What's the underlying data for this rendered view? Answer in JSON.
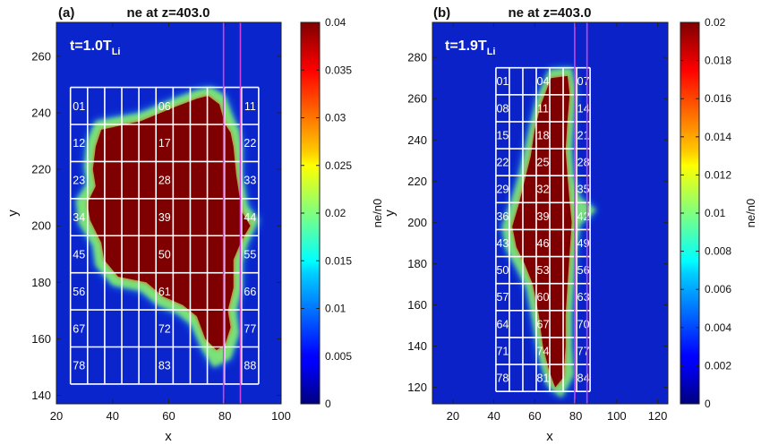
{
  "chart_data": [
    {
      "type": "heatmap",
      "panel_label": "(a)",
      "title": "ne at z=403.0",
      "time_label_main": "t=1.0T",
      "time_label_sub": "Li",
      "xlabel": "x",
      "ylabel": "y",
      "xlim": [
        20,
        100
      ],
      "ylim": [
        137,
        272
      ],
      "xticks": [
        "20",
        "40",
        "60",
        "80",
        "100"
      ],
      "yticks": [
        "140",
        "160",
        "180",
        "200",
        "220",
        "240",
        "260"
      ],
      "xtick_values": [
        20,
        40,
        60,
        80,
        100
      ],
      "ytick_values": [
        140,
        160,
        180,
        200,
        220,
        240,
        260
      ],
      "colorbar_label": "ne/n0",
      "clim": [
        0,
        0.04
      ],
      "colorbar_ticks": [
        "0",
        "0.005",
        "0.01",
        "0.015",
        "0.02",
        "0.025",
        "0.03",
        "0.035",
        "0.04"
      ],
      "colorbar_tick_values": [
        0,
        0.005,
        0.01,
        0.015,
        0.02,
        0.025,
        0.03,
        0.035,
        0.04
      ],
      "background_value": 0.001,
      "grid_box": {
        "x0": 25,
        "x1": 92,
        "y0": 144,
        "y1": 249,
        "cols": 11,
        "rows": 8
      },
      "vertical_lines_x": [
        79.5,
        85.5
      ],
      "vertical_line_color": "#cc44dd",
      "cell_labels": [
        {
          "text": "01",
          "col": 0,
          "row": 0
        },
        {
          "text": "06",
          "col": 5,
          "row": 0
        },
        {
          "text": "11",
          "col": 10,
          "row": 0
        },
        {
          "text": "12",
          "col": 0,
          "row": 1
        },
        {
          "text": "17",
          "col": 5,
          "row": 1
        },
        {
          "text": "22",
          "col": 10,
          "row": 1
        },
        {
          "text": "23",
          "col": 0,
          "row": 2
        },
        {
          "text": "28",
          "col": 5,
          "row": 2
        },
        {
          "text": "33",
          "col": 10,
          "row": 2
        },
        {
          "text": "34",
          "col": 0,
          "row": 3
        },
        {
          "text": "39",
          "col": 5,
          "row": 3
        },
        {
          "text": "44",
          "col": 10,
          "row": 3
        },
        {
          "text": "45",
          "col": 0,
          "row": 4
        },
        {
          "text": "50",
          "col": 5,
          "row": 4
        },
        {
          "text": "55",
          "col": 10,
          "row": 4
        },
        {
          "text": "56",
          "col": 0,
          "row": 5
        },
        {
          "text": "61",
          "col": 5,
          "row": 5
        },
        {
          "text": "66",
          "col": 10,
          "row": 5
        },
        {
          "text": "67",
          "col": 0,
          "row": 6
        },
        {
          "text": "72",
          "col": 5,
          "row": 6
        },
        {
          "text": "77",
          "col": 10,
          "row": 6
        },
        {
          "text": "78",
          "col": 0,
          "row": 7
        },
        {
          "text": "83",
          "col": 5,
          "row": 7
        },
        {
          "text": "88",
          "col": 10,
          "row": 7
        }
      ],
      "blob_outline": [
        [
          36,
          234
        ],
        [
          50,
          237
        ],
        [
          62,
          242
        ],
        [
          70,
          245
        ],
        [
          74,
          246
        ],
        [
          78,
          243
        ],
        [
          80,
          236
        ],
        [
          82,
          233
        ],
        [
          83,
          228
        ],
        [
          84,
          218
        ],
        [
          86,
          205
        ],
        [
          89,
          200
        ],
        [
          86,
          195
        ],
        [
          83,
          188
        ],
        [
          83,
          178
        ],
        [
          81,
          170
        ],
        [
          82,
          164
        ],
        [
          80,
          158
        ],
        [
          77,
          156
        ],
        [
          73,
          160
        ],
        [
          70,
          168
        ],
        [
          65,
          172
        ],
        [
          58,
          175
        ],
        [
          52,
          180
        ],
        [
          42,
          182
        ],
        [
          37,
          188
        ],
        [
          36,
          194
        ],
        [
          32,
          202
        ],
        [
          31,
          208
        ],
        [
          34,
          214
        ],
        [
          33,
          220
        ],
        [
          34,
          228
        ]
      ],
      "blob_halo": [
        [
          34,
          237
        ],
        [
          50,
          240
        ],
        [
          62,
          245
        ],
        [
          70,
          248
        ],
        [
          75,
          249
        ],
        [
          80,
          246
        ],
        [
          83,
          238
        ],
        [
          85,
          234
        ],
        [
          86,
          228
        ],
        [
          86,
          218
        ],
        [
          88,
          207
        ],
        [
          92,
          202
        ],
        [
          88,
          194
        ],
        [
          86,
          187
        ],
        [
          86,
          178
        ],
        [
          84,
          170
        ],
        [
          85,
          162
        ],
        [
          82,
          153
        ],
        [
          76,
          150
        ],
        [
          72,
          156
        ],
        [
          68,
          165
        ],
        [
          63,
          169
        ],
        [
          56,
          172
        ],
        [
          50,
          177
        ],
        [
          40,
          179
        ],
        [
          34,
          186
        ],
        [
          33,
          193
        ],
        [
          28,
          201
        ],
        [
          27,
          209
        ],
        [
          31,
          215
        ],
        [
          30,
          221
        ],
        [
          31,
          230
        ]
      ]
    },
    {
      "type": "heatmap",
      "panel_label": "(b)",
      "title": "ne at z=403.0",
      "time_label_main": "t=1.9T",
      "time_label_sub": "Li",
      "xlabel": "x",
      "ylabel": "y",
      "xlim": [
        10,
        125
      ],
      "ylim": [
        112,
        297
      ],
      "xticks": [
        "20",
        "40",
        "60",
        "80",
        "100",
        "120"
      ],
      "yticks": [
        "120",
        "140",
        "160",
        "180",
        "200",
        "220",
        "240",
        "260",
        "280"
      ],
      "xtick_values": [
        20,
        40,
        60,
        80,
        100,
        120
      ],
      "ytick_values": [
        120,
        140,
        160,
        180,
        200,
        220,
        240,
        260,
        280
      ],
      "colorbar_label": "ne/n0",
      "clim": [
        0,
        0.02
      ],
      "colorbar_ticks": [
        "0",
        "0.002",
        "0.004",
        "0.006",
        "0.008",
        "0.01",
        "0.012",
        "0.014",
        "0.016",
        "0.018",
        "0.02"
      ],
      "colorbar_tick_values": [
        0,
        0.002,
        0.004,
        0.006,
        0.008,
        0.01,
        0.012,
        0.014,
        0.016,
        0.018,
        0.02
      ],
      "background_value": 0.0005,
      "grid_box": {
        "x0": 41,
        "x1": 87,
        "y0": 118,
        "y1": 275,
        "cols": 7,
        "rows": 12
      },
      "vertical_lines_x": [
        79.5,
        85.5
      ],
      "vertical_line_color": "#cc44dd",
      "cell_labels": [
        {
          "text": "01",
          "col": 0,
          "row": 0
        },
        {
          "text": "04",
          "col": 3,
          "row": 0
        },
        {
          "text": "07",
          "col": 6,
          "row": 0
        },
        {
          "text": "08",
          "col": 0,
          "row": 1
        },
        {
          "text": "11",
          "col": 3,
          "row": 1
        },
        {
          "text": "14",
          "col": 6,
          "row": 1
        },
        {
          "text": "15",
          "col": 0,
          "row": 2
        },
        {
          "text": "18",
          "col": 3,
          "row": 2
        },
        {
          "text": "21",
          "col": 6,
          "row": 2
        },
        {
          "text": "22",
          "col": 0,
          "row": 3
        },
        {
          "text": "25",
          "col": 3,
          "row": 3
        },
        {
          "text": "28",
          "col": 6,
          "row": 3
        },
        {
          "text": "29",
          "col": 0,
          "row": 4
        },
        {
          "text": "32",
          "col": 3,
          "row": 4
        },
        {
          "text": "35",
          "col": 6,
          "row": 4
        },
        {
          "text": "36",
          "col": 0,
          "row": 5
        },
        {
          "text": "39",
          "col": 3,
          "row": 5
        },
        {
          "text": "42",
          "col": 6,
          "row": 5
        },
        {
          "text": "43",
          "col": 0,
          "row": 6
        },
        {
          "text": "46",
          "col": 3,
          "row": 6
        },
        {
          "text": "49",
          "col": 6,
          "row": 6
        },
        {
          "text": "50",
          "col": 0,
          "row": 7
        },
        {
          "text": "53",
          "col": 3,
          "row": 7
        },
        {
          "text": "56",
          "col": 6,
          "row": 7
        },
        {
          "text": "57",
          "col": 0,
          "row": 8
        },
        {
          "text": "60",
          "col": 3,
          "row": 8
        },
        {
          "text": "63",
          "col": 6,
          "row": 8
        },
        {
          "text": "64",
          "col": 0,
          "row": 9
        },
        {
          "text": "67",
          "col": 3,
          "row": 9
        },
        {
          "text": "70",
          "col": 6,
          "row": 9
        },
        {
          "text": "71",
          "col": 0,
          "row": 10
        },
        {
          "text": "74",
          "col": 3,
          "row": 10
        },
        {
          "text": "77",
          "col": 6,
          "row": 10
        },
        {
          "text": "78",
          "col": 0,
          "row": 11
        },
        {
          "text": "81",
          "col": 3,
          "row": 11
        },
        {
          "text": "84",
          "col": 6,
          "row": 11
        }
      ],
      "blob_outline": [
        [
          68,
          270
        ],
        [
          76,
          271
        ],
        [
          77,
          262
        ],
        [
          76,
          250
        ],
        [
          75,
          235
        ],
        [
          76,
          222
        ],
        [
          77,
          210
        ],
        [
          78,
          200
        ],
        [
          77,
          185
        ],
        [
          76,
          170
        ],
        [
          75,
          155
        ],
        [
          75,
          140
        ],
        [
          74,
          125
        ],
        [
          70,
          120
        ],
        [
          67,
          128
        ],
        [
          64,
          140
        ],
        [
          62,
          155
        ],
        [
          59,
          170
        ],
        [
          55,
          180
        ],
        [
          51,
          188
        ],
        [
          49,
          198
        ],
        [
          52,
          208
        ],
        [
          55,
          220
        ],
        [
          58,
          232
        ],
        [
          60,
          245
        ],
        [
          63,
          257
        ]
      ],
      "blob_halo": [
        [
          67,
          274
        ],
        [
          78,
          275
        ],
        [
          80,
          264
        ],
        [
          79,
          250
        ],
        [
          78,
          235
        ],
        [
          79,
          222
        ],
        [
          82,
          212
        ],
        [
          90,
          206
        ],
        [
          82,
          199
        ],
        [
          80,
          185
        ],
        [
          79,
          170
        ],
        [
          78,
          155
        ],
        [
          78,
          140
        ],
        [
          79,
          126
        ],
        [
          73,
          115
        ],
        [
          66,
          121
        ],
        [
          62,
          135
        ],
        [
          59,
          152
        ],
        [
          56,
          168
        ],
        [
          51,
          178
        ],
        [
          46,
          187
        ],
        [
          44,
          198
        ],
        [
          48,
          209
        ],
        [
          52,
          222
        ],
        [
          55,
          235
        ],
        [
          58,
          248
        ],
        [
          61,
          260
        ]
      ]
    }
  ]
}
